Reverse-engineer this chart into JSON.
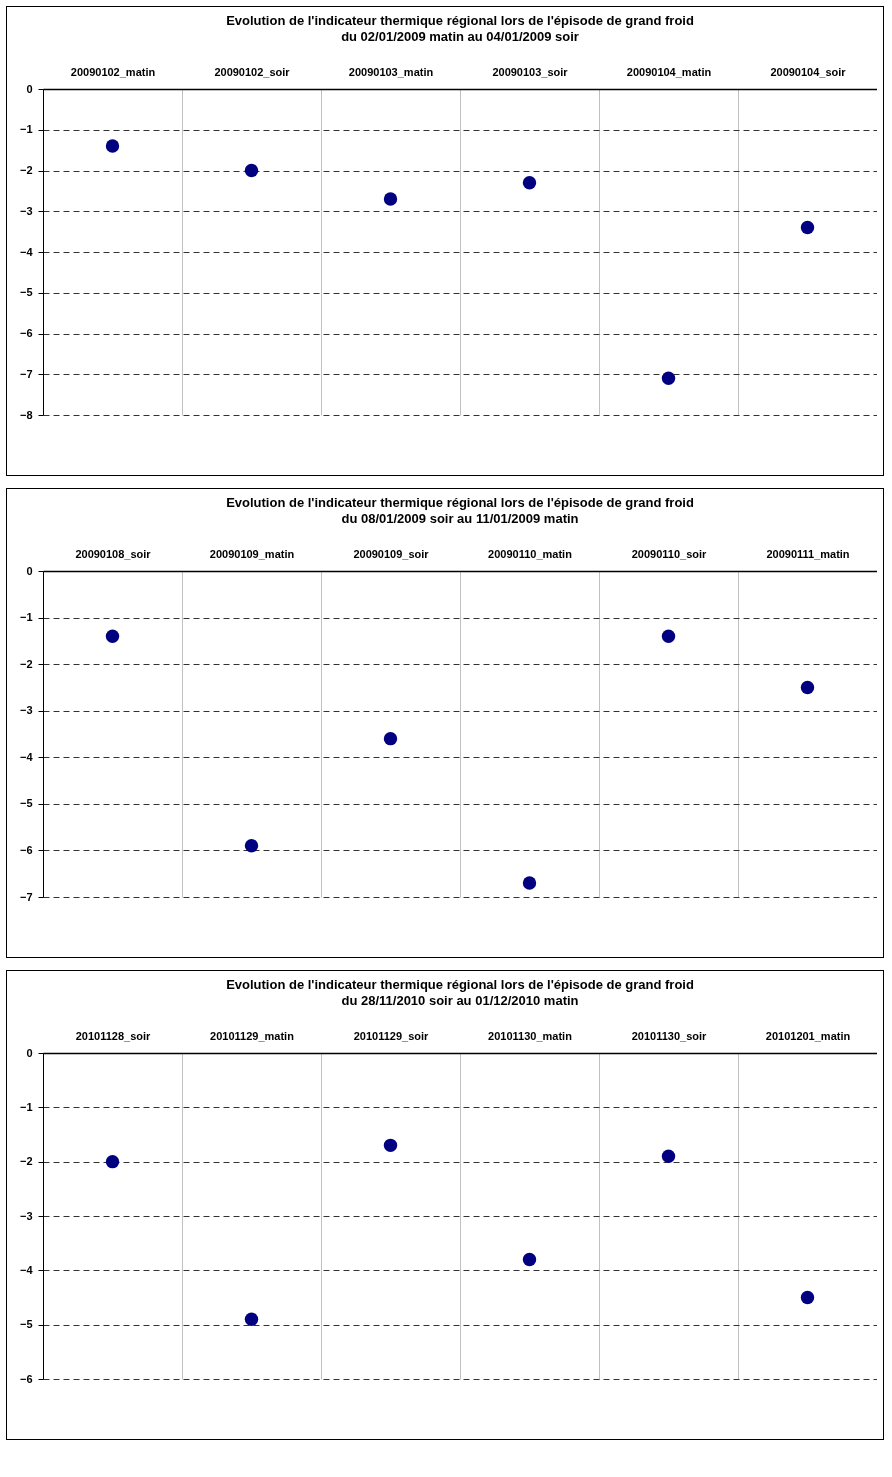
{
  "chart_data": [
    {
      "type": "scatter",
      "title": "Evolution de l'indicateur thermique régional lors de l'épisode de grand froid",
      "subtitle": "du 02/01/2009 matin au 04/01/2009 soir",
      "categories": [
        "20090102_matin",
        "20090102_soir",
        "20090103_matin",
        "20090103_soir",
        "20090104_matin",
        "20090104_soir"
      ],
      "series": [
        {
          "color": "#000080",
          "values": [
            -1.4,
            -2.0,
            -2.7,
            -2.3,
            -7.1,
            -3.4
          ]
        }
      ],
      "ylim": [
        -8,
        0
      ],
      "yticks": [
        -8,
        -7,
        -6,
        -5,
        -4,
        -3,
        -2,
        -1,
        0
      ],
      "grid": true,
      "marker": "circle"
    },
    {
      "type": "scatter",
      "title": "Evolution de l'indicateur thermique régional lors de l'épisode de grand froid",
      "subtitle": "du 08/01/2009 soir au 11/01/2009 matin",
      "categories": [
        "20090108_soir",
        "20090109_matin",
        "20090109_soir",
        "20090110_matin",
        "20090110_soir",
        "20090111_matin"
      ],
      "series": [
        {
          "color": "#000080",
          "values": [
            -1.4,
            -5.9,
            -3.6,
            -6.7,
            -1.4,
            -2.5
          ]
        }
      ],
      "ylim": [
        -7,
        0
      ],
      "yticks": [
        -7,
        -6,
        -5,
        -4,
        -3,
        -2,
        -1,
        0
      ],
      "grid": true,
      "marker": "circle"
    },
    {
      "type": "scatter",
      "title": "Evolution de l'indicateur thermique régional lors de l'épisode de grand froid",
      "subtitle": "du 28/11/2010 soir au 01/12/2010 matin",
      "categories": [
        "20101128_soir",
        "20101129_matin",
        "20101129_soir",
        "20101130_matin",
        "20101130_soir",
        "20101201_matin"
      ],
      "series": [
        {
          "color": "#000080",
          "values": [
            -2.0,
            -4.9,
            -1.7,
            -3.8,
            -1.9,
            -4.5
          ]
        }
      ],
      "ylim": [
        -6,
        0
      ],
      "yticks": [
        -6,
        -5,
        -4,
        -3,
        -2,
        -1,
        0
      ],
      "grid": true,
      "marker": "circle"
    }
  ]
}
